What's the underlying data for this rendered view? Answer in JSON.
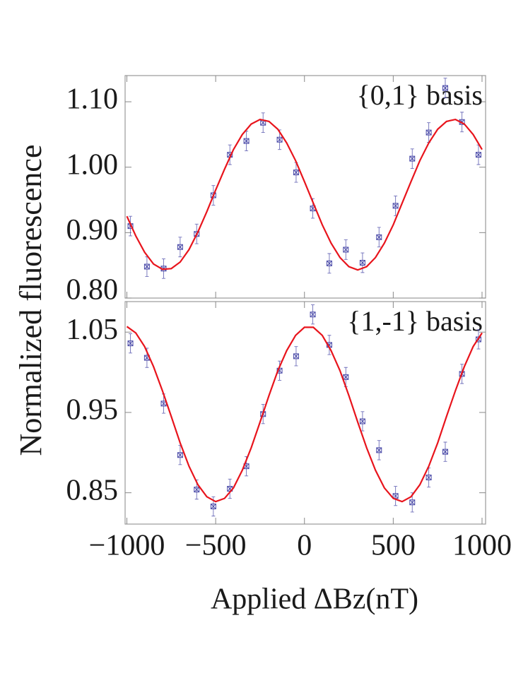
{
  "chart_data": [
    {
      "type": "scatter",
      "annotation": "{0,1} basis",
      "ylabel": "Normalized fluorescence",
      "xlim": [
        -1010,
        1020
      ],
      "ylim": [
        0.8,
        1.14
      ],
      "yticks": [
        {
          "value": 0.8,
          "label": "0.80"
        },
        {
          "value": 0.9,
          "label": "0.90"
        },
        {
          "value": 1.0,
          "label": "1.00"
        },
        {
          "value": 1.1,
          "label": "1.10"
        }
      ],
      "series": [
        {
          "type": "errorbar",
          "color": "#4a4aa8",
          "x": [
            -980,
            -887,
            -793,
            -700,
            -607,
            -513,
            -420,
            -327,
            -233,
            -140,
            -47,
            47,
            140,
            233,
            327,
            420,
            513,
            607,
            700,
            793,
            887,
            980
          ],
          "values": [
            0.91,
            0.848,
            0.845,
            0.878,
            0.898,
            0.957,
            1.019,
            1.04,
            1.068,
            1.042,
            0.992,
            0.937,
            0.853,
            0.874,
            0.854,
            0.893,
            0.941,
            1.013,
            1.053,
            1.121,
            1.069,
            1.019
          ],
          "errors": [
            0.015,
            0.015,
            0.015,
            0.015,
            0.015,
            0.015,
            0.015,
            0.015,
            0.015,
            0.015,
            0.015,
            0.015,
            0.015,
            0.015,
            0.015,
            0.015,
            0.015,
            0.015,
            0.015,
            0.015,
            0.015,
            0.015
          ]
        },
        {
          "type": "line",
          "color": "#e8141c",
          "x": [
            -1000,
            -950,
            -900,
            -850,
            -800,
            -750,
            -700,
            -650,
            -600,
            -550,
            -500,
            -450,
            -400,
            -350,
            -300,
            -250,
            -200,
            -150,
            -100,
            -50,
            0,
            50,
            100,
            150,
            200,
            250,
            300,
            350,
            400,
            450,
            500,
            550,
            600,
            650,
            700,
            750,
            800,
            850,
            900,
            950,
            1000
          ],
          "values": [
            0.925,
            0.895,
            0.87,
            0.852,
            0.844,
            0.845,
            0.855,
            0.874,
            0.901,
            0.932,
            0.965,
            0.997,
            1.027,
            1.05,
            1.066,
            1.073,
            1.07,
            1.058,
            1.037,
            1.01,
            0.978,
            0.945,
            0.912,
            0.884,
            0.862,
            0.848,
            0.843,
            0.848,
            0.862,
            0.884,
            0.912,
            0.945,
            0.978,
            1.01,
            1.037,
            1.058,
            1.07,
            1.073,
            1.066,
            1.05,
            1.027
          ]
        }
      ]
    },
    {
      "type": "scatter",
      "annotation": "{1,-1} basis",
      "xlabel": "Applied ΔBz(nT)",
      "xlim": [
        -1010,
        1020
      ],
      "ylim": [
        0.811,
        1.088
      ],
      "xticks": [
        {
          "value": -1000,
          "label": "−1000"
        },
        {
          "value": -500,
          "label": "−500"
        },
        0,
        500,
        1000
      ],
      "yticks": [
        {
          "value": 0.85,
          "label": "0.85"
        },
        {
          "value": 0.95,
          "label": "0.95"
        },
        {
          "value": 1.05,
          "label": "1.05"
        }
      ],
      "series": [
        {
          "type": "errorbar",
          "color": "#4a4aa8",
          "x": [
            -980,
            -887,
            -793,
            -700,
            -607,
            -513,
            -420,
            -327,
            -233,
            -140,
            -47,
            47,
            140,
            233,
            327,
            420,
            513,
            607,
            700,
            793,
            887,
            980
          ],
          "values": [
            1.036,
            1.018,
            0.961,
            0.897,
            0.854,
            0.833,
            0.855,
            0.883,
            0.948,
            1.002,
            1.02,
            1.072,
            1.034,
            0.994,
            0.939,
            0.903,
            0.846,
            0.838,
            0.869,
            0.901,
            0.998,
            1.041
          ],
          "errors": [
            0.012,
            0.012,
            0.012,
            0.012,
            0.012,
            0.012,
            0.012,
            0.012,
            0.012,
            0.012,
            0.012,
            0.012,
            0.012,
            0.012,
            0.012,
            0.012,
            0.012,
            0.012,
            0.012,
            0.012,
            0.012,
            0.012
          ]
        },
        {
          "type": "line",
          "color": "#e8141c",
          "x": [
            -1000,
            -950,
            -900,
            -850,
            -800,
            -750,
            -700,
            -650,
            -600,
            -550,
            -500,
            -450,
            -400,
            -350,
            -300,
            -250,
            -200,
            -150,
            -100,
            -50,
            0,
            50,
            100,
            150,
            200,
            250,
            300,
            350,
            400,
            450,
            500,
            550,
            600,
            650,
            700,
            750,
            800,
            850,
            900,
            950,
            1000
          ],
          "values": [
            1.057,
            1.049,
            1.032,
            1.007,
            0.977,
            0.945,
            0.912,
            0.883,
            0.86,
            0.845,
            0.839,
            0.843,
            0.856,
            0.878,
            0.906,
            0.938,
            0.971,
            1.002,
            1.027,
            1.046,
            1.056,
            1.056,
            1.046,
            1.027,
            1.002,
            0.971,
            0.938,
            0.906,
            0.878,
            0.856,
            0.843,
            0.839,
            0.845,
            0.86,
            0.883,
            0.912,
            0.945,
            0.977,
            1.007,
            1.032,
            1.049
          ]
        }
      ]
    }
  ]
}
